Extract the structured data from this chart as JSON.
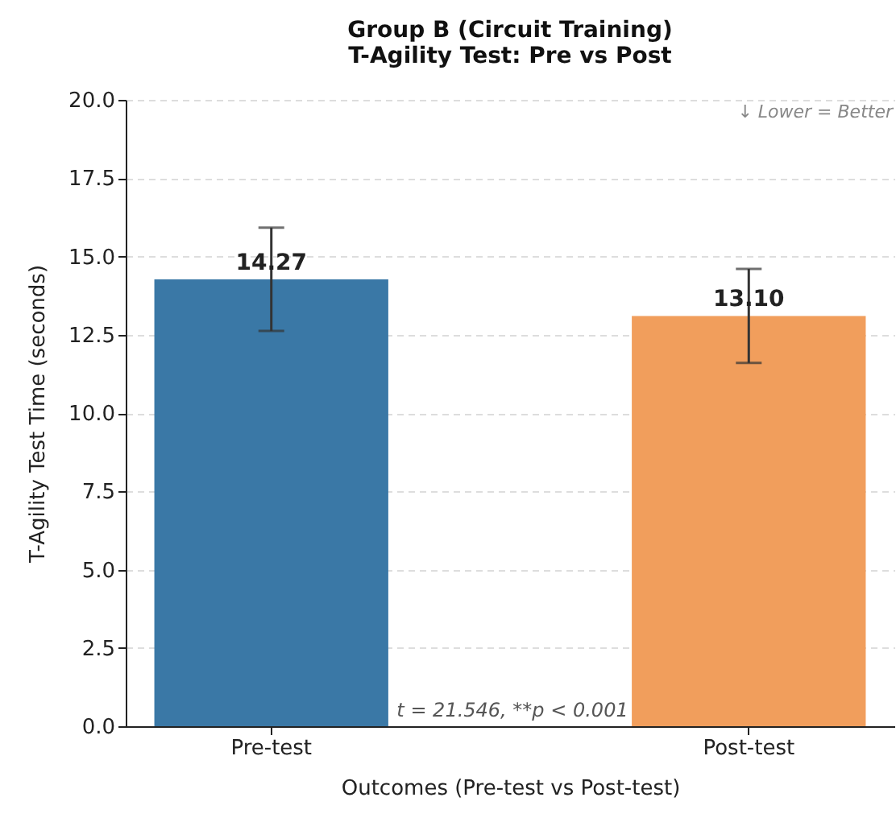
{
  "chart_data": {
    "type": "bar",
    "title": "Group B (Circuit Training)",
    "subtitle": "T-Agility Test: Pre vs Post",
    "xlabel": "Outcomes (Pre-test vs Post-test)",
    "ylabel": "T-Agility Test Time (seconds)",
    "categories": [
      "Pre-test",
      "Post-test"
    ],
    "values": [
      14.27,
      13.1
    ],
    "colors": [
      "#3a78a6",
      "#f19e5c"
    ],
    "errors": [
      1.65,
      1.5
    ],
    "value_labels": [
      "14.27",
      "13.10"
    ],
    "ylim": [
      0,
      20
    ],
    "yticks": [
      {
        "value": 0,
        "label": "0.0"
      },
      2.5,
      {
        "value": 5,
        "label": "5.0"
      },
      7.5,
      {
        "value": 10,
        "label": "10.0"
      },
      12.5,
      {
        "value": 15,
        "label": "15.0"
      },
      17.5,
      {
        "value": 20,
        "label": "20.0"
      }
    ],
    "grid": "y",
    "annotations": [
      "↓ Lower = Better",
      "t = 21.546, **p < 0.001"
    ]
  }
}
